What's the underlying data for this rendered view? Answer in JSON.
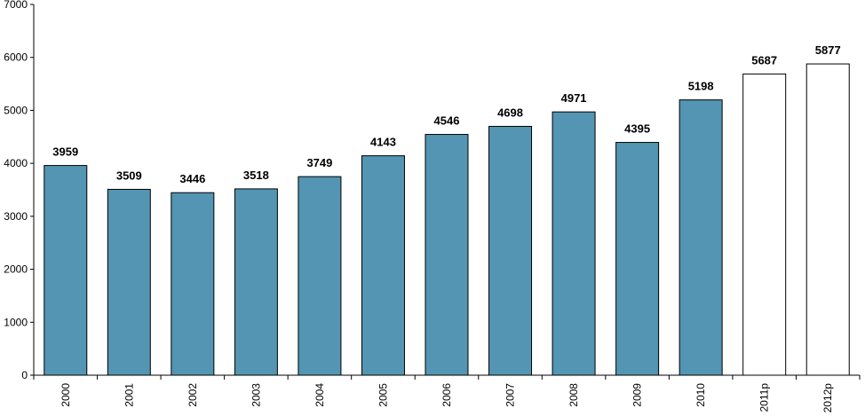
{
  "chart_data": {
    "type": "bar",
    "categories": [
      "2000",
      "2001",
      "2002",
      "2003",
      "2004",
      "2005",
      "2006",
      "2007",
      "2008",
      "2009",
      "2010",
      "2011p",
      "2012p"
    ],
    "values": [
      3959,
      3509,
      3446,
      3518,
      3749,
      4143,
      4546,
      4698,
      4971,
      4395,
      5198,
      5687,
      5877
    ],
    "projected": [
      false,
      false,
      false,
      false,
      false,
      false,
      false,
      false,
      false,
      false,
      false,
      true,
      true
    ],
    "title": "",
    "xlabel": "",
    "ylabel": "",
    "ylim": [
      0,
      7000
    ],
    "yticks": [
      0,
      1000,
      2000,
      3000,
      4000,
      5000,
      6000,
      7000
    ],
    "grid": false,
    "colors": {
      "bar": "#5395b2",
      "projected_bar": "#ffffff",
      "bar_edge": "#000000"
    }
  }
}
